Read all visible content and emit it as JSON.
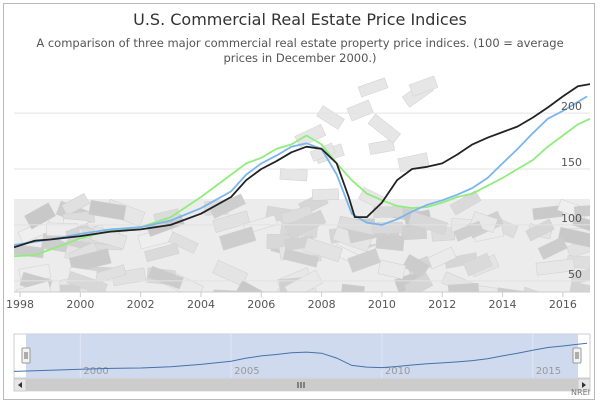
{
  "chart_data": {
    "type": "line",
    "title": "U.S. Commercial Real Estate Price Indices",
    "subtitle": "A comparison of three major commercial real estate property price indices. (100 = average prices in December 2000.)",
    "credit": "NREI",
    "xlim": [
      1997.8,
      2016.9
    ],
    "ylim": [
      40,
      235
    ],
    "y_ticks": [
      50,
      100,
      150,
      200
    ],
    "x_ticks": [
      1998,
      2000,
      2002,
      2004,
      2006,
      2008,
      2010,
      2012,
      2014,
      2016
    ],
    "navigator_ticks": [
      2000,
      2005,
      2010,
      2015
    ],
    "grid": true,
    "series": [
      {
        "color": "#222222",
        "x": [
          1997.8,
          1998.5,
          1999,
          2000,
          2001,
          2002,
          2003,
          2004,
          2005,
          2005.5,
          2006,
          2006.5,
          2007,
          2007.5,
          2008,
          2008.5,
          2008.9,
          2009.1,
          2009.5,
          2010,
          2010.5,
          2011,
          2011.5,
          2012,
          2012.5,
          2013,
          2013.5,
          2014,
          2014.5,
          2015,
          2015.5,
          2016,
          2016.5,
          2016.9
        ],
        "y": [
          80,
          86,
          87,
          90,
          94,
          96,
          100,
          110,
          125,
          140,
          150,
          157,
          165,
          170,
          168,
          155,
          125,
          107,
          107,
          120,
          140,
          150,
          152,
          155,
          163,
          172,
          178,
          183,
          188,
          196,
          205,
          215,
          224,
          226
        ]
      },
      {
        "color": "#7cb5ec",
        "x": [
          1997.8,
          1998.5,
          1999,
          2000,
          2001,
          2002,
          2003,
          2004,
          2005,
          2005.5,
          2006,
          2006.5,
          2007,
          2007.5,
          2008,
          2008.5,
          2009,
          2009.5,
          2010,
          2010.5,
          2011,
          2011.5,
          2012,
          2012.5,
          2013,
          2013.5,
          2014,
          2014.5,
          2015,
          2015.5,
          2016,
          2016.5,
          2016.8
        ],
        "y": [
          82,
          85,
          87,
          92,
          96,
          98,
          104,
          115,
          130,
          145,
          155,
          162,
          170,
          173,
          168,
          145,
          110,
          102,
          100,
          105,
          112,
          118,
          122,
          127,
          133,
          142,
          155,
          168,
          182,
          195,
          202,
          210,
          215
        ]
      },
      {
        "color": "#90ed7d",
        "x": [
          1997.8,
          1998.5,
          1999,
          2000,
          2001,
          2002,
          2003,
          2004,
          2005,
          2005.5,
          2006,
          2006.5,
          2007,
          2007.5,
          2008,
          2008.5,
          2009,
          2009.5,
          2010,
          2010.5,
          2011,
          2011.5,
          2012,
          2012.5,
          2013,
          2013.5,
          2014,
          2014.5,
          2015,
          2015.5,
          2016,
          2016.5,
          2016.9
        ],
        "y": [
          72,
          73,
          78,
          88,
          95,
          98,
          107,
          125,
          145,
          155,
          160,
          168,
          172,
          180,
          172,
          155,
          140,
          128,
          122,
          117,
          115,
          116,
          120,
          125,
          128,
          135,
          142,
          150,
          158,
          170,
          180,
          190,
          195
        ]
      }
    ]
  }
}
